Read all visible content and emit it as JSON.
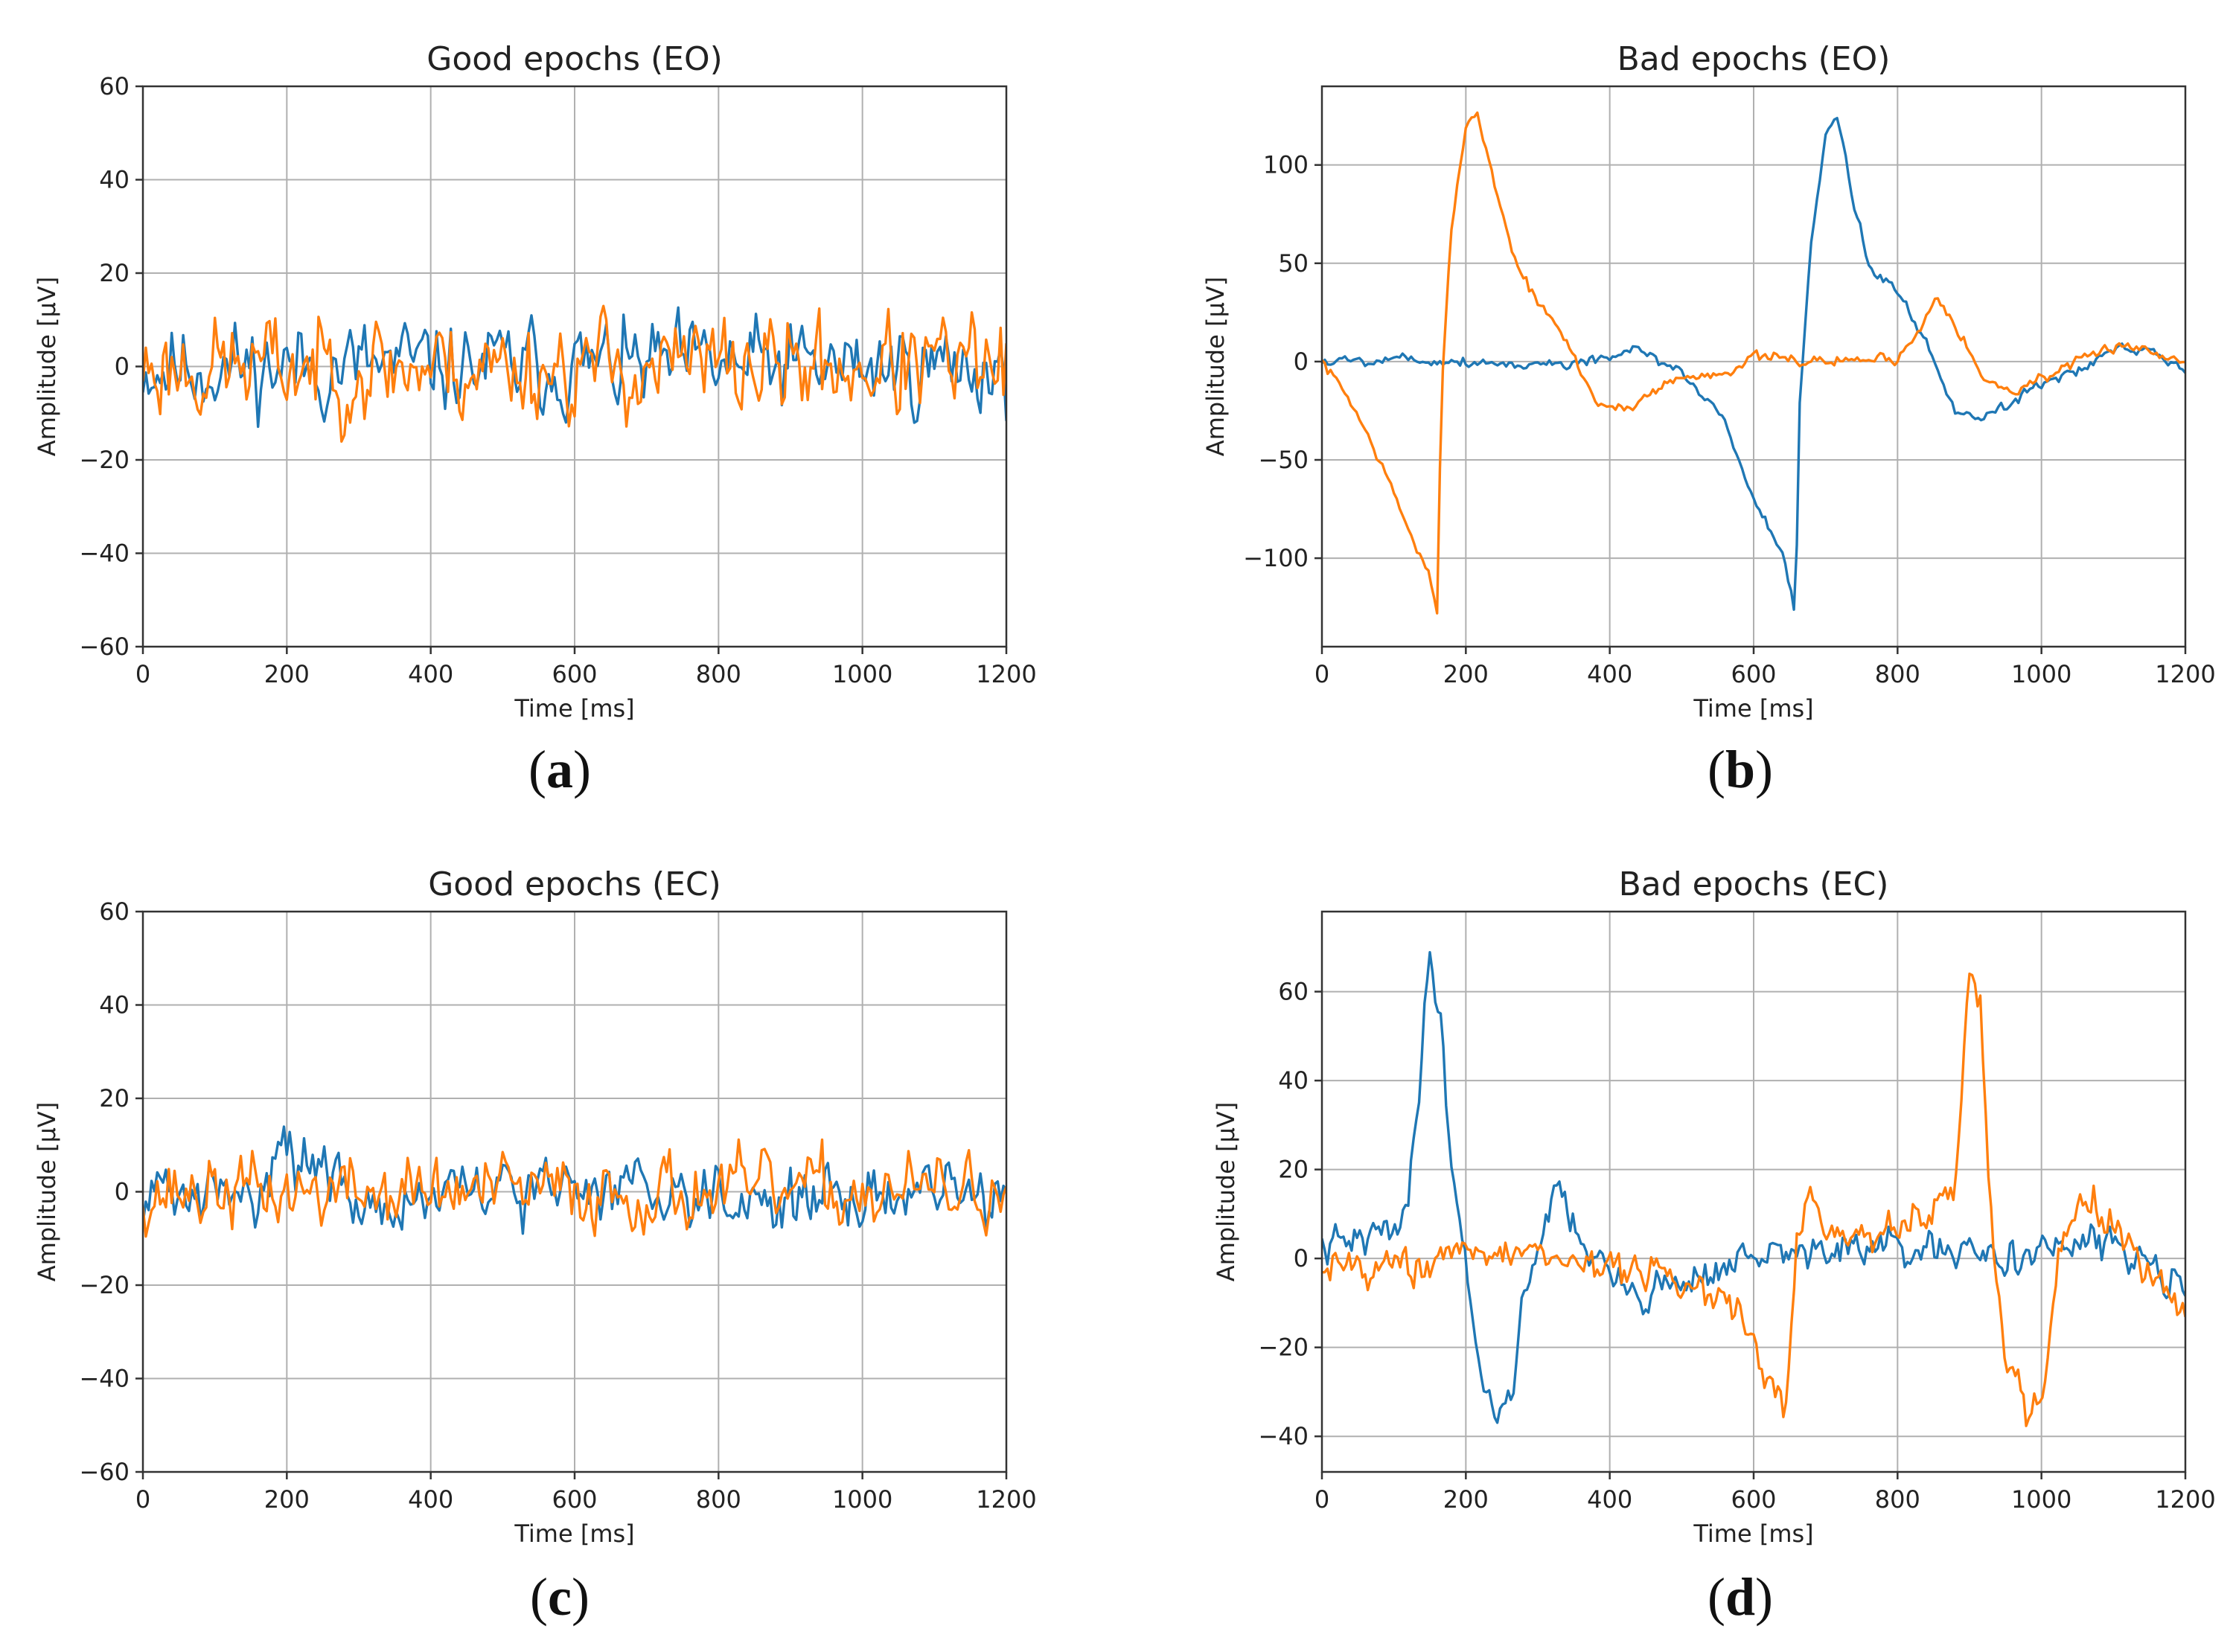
{
  "colors": {
    "blue": "#1f77b4",
    "orange": "#ff7f0e"
  },
  "chart_data": [
    {
      "id": "a",
      "type": "line",
      "panel_label": "(a)",
      "title": "Good epochs (EO)",
      "xlabel": "Time [ms]",
      "ylabel": "Amplitude [µV]",
      "xlim": [
        0,
        1200
      ],
      "ylim": [
        -60,
        60
      ],
      "xticks": [
        0,
        200,
        400,
        600,
        800,
        1000,
        1200
      ],
      "yticks": [
        -60,
        -40,
        -20,
        0,
        20,
        40,
        60
      ],
      "grid": true,
      "series": [
        {
          "name": "blue",
          "color": "#1f77b4",
          "noise": {
            "seed": 11,
            "amp": 8,
            "n": 300
          },
          "points": []
        },
        {
          "name": "orange",
          "color": "#ff7f0e",
          "noise": {
            "seed": 23,
            "amp": 9,
            "n": 300
          },
          "points": []
        }
      ]
    },
    {
      "id": "b",
      "type": "line",
      "panel_label": "(b)",
      "title": "Bad epochs (EO)",
      "xlabel": "Time [ms]",
      "ylabel": "Amplitude [µV]",
      "xlim": [
        0,
        1200
      ],
      "ylim": [
        -145,
        140
      ],
      "xticks": [
        0,
        200,
        400,
        600,
        800,
        1000,
        1200
      ],
      "yticks": [
        -100,
        -50,
        0,
        50,
        100
      ],
      "grid": true,
      "series": [
        {
          "name": "blue",
          "color": "#1f77b4",
          "noise": {
            "seed": 5,
            "amp": 2.5,
            "n": 300
          },
          "points": [
            [
              0,
              0
            ],
            [
              100,
              2
            ],
            [
              200,
              0
            ],
            [
              300,
              -2
            ],
            [
              400,
              2
            ],
            [
              440,
              5
            ],
            [
              500,
              -5
            ],
            [
              560,
              -30
            ],
            [
              600,
              -70
            ],
            [
              640,
              -100
            ],
            [
              658,
              -130
            ],
            [
              664,
              -20
            ],
            [
              680,
              60
            ],
            [
              700,
              115
            ],
            [
              715,
              125
            ],
            [
              740,
              80
            ],
            [
              760,
              50
            ],
            [
              800,
              35
            ],
            [
              840,
              10
            ],
            [
              880,
              -25
            ],
            [
              920,
              -28
            ],
            [
              960,
              -20
            ],
            [
              1000,
              -10
            ],
            [
              1050,
              -5
            ],
            [
              1100,
              5
            ],
            [
              1150,
              5
            ],
            [
              1200,
              -5
            ]
          ]
        },
        {
          "name": "orange",
          "color": "#ff7f0e",
          "noise": {
            "seed": 7,
            "amp": 2.5,
            "n": 300
          },
          "points": [
            [
              0,
              0
            ],
            [
              40,
              -20
            ],
            [
              80,
              -50
            ],
            [
              120,
              -85
            ],
            [
              150,
              -110
            ],
            [
              160,
              -130
            ],
            [
              166,
              -20
            ],
            [
              180,
              70
            ],
            [
              200,
              120
            ],
            [
              215,
              128
            ],
            [
              240,
              90
            ],
            [
              270,
              50
            ],
            [
              300,
              30
            ],
            [
              340,
              10
            ],
            [
              380,
              -20
            ],
            [
              420,
              -25
            ],
            [
              480,
              -10
            ],
            [
              560,
              -5
            ],
            [
              600,
              2
            ],
            [
              700,
              0
            ],
            [
              800,
              2
            ],
            [
              830,
              15
            ],
            [
              855,
              35
            ],
            [
              880,
              20
            ],
            [
              920,
              -10
            ],
            [
              960,
              -15
            ],
            [
              1000,
              -8
            ],
            [
              1060,
              0
            ],
            [
              1110,
              10
            ],
            [
              1150,
              5
            ],
            [
              1200,
              0
            ]
          ]
        }
      ]
    },
    {
      "id": "c",
      "type": "line",
      "panel_label": "(c)",
      "title": "Good epochs (EC)",
      "xlabel": "Time [ms]",
      "ylabel": "Amplitude [µV]",
      "xlim": [
        0,
        1200
      ],
      "ylim": [
        -60,
        60
      ],
      "xticks": [
        0,
        200,
        400,
        600,
        800,
        1000,
        1200
      ],
      "yticks": [
        -60,
        -40,
        -20,
        0,
        20,
        40,
        60
      ],
      "grid": true,
      "series": [
        {
          "name": "blue",
          "color": "#1f77b4",
          "noise": {
            "seed": 31,
            "amp": 5.5,
            "n": 300
          },
          "points": [
            [
              0,
              0
            ],
            [
              150,
              -2
            ],
            [
              190,
              12
            ],
            [
              230,
              6
            ],
            [
              300,
              -3
            ],
            [
              500,
              0
            ],
            [
              700,
              2
            ],
            [
              900,
              -2
            ],
            [
              1100,
              0
            ],
            [
              1200,
              -2
            ]
          ]
        },
        {
          "name": "orange",
          "color": "#ff7f0e",
          "noise": {
            "seed": 37,
            "amp": 6.5,
            "n": 300
          },
          "points": []
        }
      ]
    },
    {
      "id": "d",
      "type": "line",
      "panel_label": "(d)",
      "title": "Bad epochs (EC)",
      "xlabel": "Time [ms]",
      "ylabel": "Amplitude [µV]",
      "xlim": [
        0,
        1200
      ],
      "ylim": [
        -48,
        78
      ],
      "xticks": [
        0,
        200,
        400,
        600,
        800,
        1000,
        1200
      ],
      "yticks": [
        -40,
        -20,
        0,
        20,
        40,
        60
      ],
      "grid": true,
      "series": [
        {
          "name": "blue",
          "color": "#1f77b4",
          "noise": {
            "seed": 41,
            "amp": 3.5,
            "n": 320
          },
          "points": [
            [
              0,
              2
            ],
            [
              80,
              5
            ],
            [
              120,
              12
            ],
            [
              150,
              68
            ],
            [
              165,
              55
            ],
            [
              180,
              20
            ],
            [
              200,
              0
            ],
            [
              220,
              -25
            ],
            [
              240,
              -35
            ],
            [
              260,
              -32
            ],
            [
              280,
              -10
            ],
            [
              310,
              10
            ],
            [
              330,
              15
            ],
            [
              360,
              5
            ],
            [
              400,
              -5
            ],
            [
              440,
              -8
            ],
            [
              500,
              -5
            ],
            [
              600,
              0
            ],
            [
              700,
              2
            ],
            [
              800,
              2
            ],
            [
              900,
              0
            ],
            [
              1000,
              2
            ],
            [
              1100,
              3
            ],
            [
              1150,
              0
            ],
            [
              1200,
              -5
            ]
          ]
        },
        {
          "name": "orange",
          "color": "#ff7f0e",
          "noise": {
            "seed": 43,
            "amp": 3.5,
            "n": 320
          },
          "points": [
            [
              0,
              0
            ],
            [
              100,
              -2
            ],
            [
              200,
              0
            ],
            [
              300,
              2
            ],
            [
              400,
              -2
            ],
            [
              500,
              -5
            ],
            [
              560,
              -10
            ],
            [
              600,
              -20
            ],
            [
              630,
              -30
            ],
            [
              645,
              -35
            ],
            [
              660,
              5
            ],
            [
              680,
              15
            ],
            [
              700,
              5
            ],
            [
              760,
              5
            ],
            [
              840,
              10
            ],
            [
              880,
              15
            ],
            [
              900,
              65
            ],
            [
              915,
              55
            ],
            [
              930,
              10
            ],
            [
              950,
              -20
            ],
            [
              980,
              -35
            ],
            [
              1000,
              -30
            ],
            [
              1030,
              5
            ],
            [
              1060,
              15
            ],
            [
              1100,
              8
            ],
            [
              1150,
              -5
            ],
            [
              1200,
              -12
            ]
          ]
        }
      ]
    }
  ]
}
